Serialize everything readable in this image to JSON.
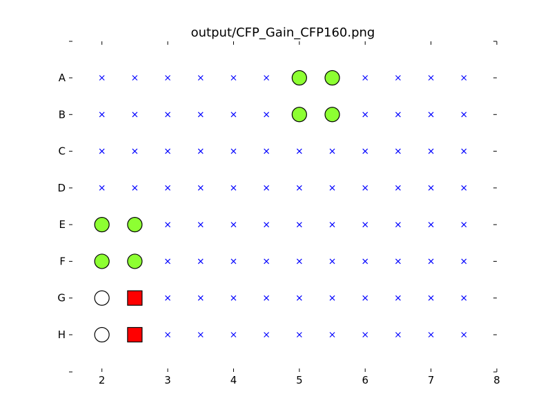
{
  "chart_data": {
    "type": "scatter",
    "title": "output/CFP_Gain_CFP160.png",
    "xlabel": "",
    "ylabel": "",
    "xlim": [
      1.5,
      8
    ],
    "x_ticks": [
      2,
      3,
      4,
      5,
      6,
      7,
      8
    ],
    "x_tick_labels": [
      "2",
      "3",
      "4",
      "5",
      "6",
      "7",
      "8"
    ],
    "rows": [
      "A",
      "B",
      "C",
      "D",
      "E",
      "F",
      "G",
      "H"
    ],
    "columns": [
      2,
      2.5,
      3,
      3.5,
      4,
      4.5,
      5,
      5.5,
      6,
      6.5,
      7,
      7.5
    ],
    "grid": false,
    "legend": "none",
    "marker_styles": {
      "empty": {
        "shape": "x",
        "color": "#0000ff"
      },
      "green": {
        "shape": "circle",
        "fill": "#8dff32",
        "stroke": "#000000"
      },
      "white": {
        "shape": "circle",
        "fill": "#ffffff",
        "stroke": "#000000"
      },
      "red": {
        "shape": "square",
        "fill": "#ff0000",
        "stroke": "#000000"
      }
    },
    "points": [
      {
        "row": "A",
        "x": 5,
        "kind": "green"
      },
      {
        "row": "A",
        "x": 5.5,
        "kind": "green"
      },
      {
        "row": "B",
        "x": 5,
        "kind": "green"
      },
      {
        "row": "B",
        "x": 5.5,
        "kind": "green"
      },
      {
        "row": "E",
        "x": 2,
        "kind": "green"
      },
      {
        "row": "E",
        "x": 2.5,
        "kind": "green"
      },
      {
        "row": "F",
        "x": 2,
        "kind": "green"
      },
      {
        "row": "F",
        "x": 2.5,
        "kind": "green"
      },
      {
        "row": "G",
        "x": 2,
        "kind": "white"
      },
      {
        "row": "G",
        "x": 2.5,
        "kind": "red"
      },
      {
        "row": "H",
        "x": 2,
        "kind": "white"
      },
      {
        "row": "H",
        "x": 2.5,
        "kind": "red"
      }
    ]
  }
}
